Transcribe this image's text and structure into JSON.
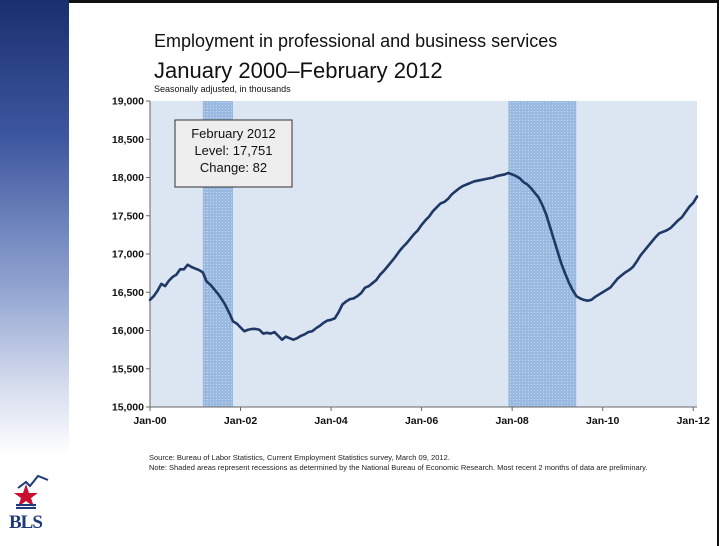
{
  "title": "Employment in professional and business services",
  "subtitle": "January 2000–February 2012",
  "units_note": "Seasonally adjusted, in thousands",
  "source": "Source: Bureau of Labor Statistics, Current Employment Statistics survey, March 09, 2012.",
  "note": "Note: Shaded areas represent recessions as determined by the National Bureau of Economic Research. Most recent 2 months of data are preliminary.",
  "logo_text": "BLS",
  "colors": {
    "line": "#1f3866",
    "plot_bg": "#dce6f2",
    "recession": "#9ab9e0",
    "side_band": "#2a4488"
  },
  "callout": {
    "lines": [
      "February 2012",
      "Level: 17,751",
      "Change: 82"
    ]
  },
  "chart_data": {
    "type": "line",
    "title": "Employment in professional and business services",
    "subtitle": "January 2000–February 2012",
    "ylabel": "Seasonally adjusted, in thousands",
    "x_ticks": [
      "Jan-00",
      "Jan-02",
      "Jan-04",
      "Jan-06",
      "Jan-08",
      "Jan-10",
      "Jan-12"
    ],
    "y_ticks": [
      "15,000",
      "15,500",
      "16,000",
      "16,500",
      "17,000",
      "17,500",
      "18,000",
      "18,500",
      "19,000"
    ],
    "ylim": [
      15000,
      19000
    ],
    "xlim": [
      "2000-01",
      "2012-02"
    ],
    "grid": false,
    "recessions": [
      {
        "start": "2001-03",
        "end": "2001-11"
      },
      {
        "start": "2007-12",
        "end": "2009-06"
      }
    ],
    "series": [
      {
        "points": [
          [
            "2000-01",
            16400
          ],
          [
            "2000-02",
            16450
          ],
          [
            "2000-03",
            16520
          ],
          [
            "2000-04",
            16610
          ],
          [
            "2000-05",
            16580
          ],
          [
            "2000-06",
            16650
          ],
          [
            "2000-07",
            16700
          ],
          [
            "2000-08",
            16730
          ],
          [
            "2000-09",
            16800
          ],
          [
            "2000-10",
            16800
          ],
          [
            "2000-11",
            16860
          ],
          [
            "2000-12",
            16830
          ],
          [
            "2001-01",
            16810
          ],
          [
            "2001-02",
            16790
          ],
          [
            "2001-03",
            16760
          ],
          [
            "2001-04",
            16640
          ],
          [
            "2001-05",
            16600
          ],
          [
            "2001-06",
            16540
          ],
          [
            "2001-07",
            16480
          ],
          [
            "2001-08",
            16410
          ],
          [
            "2001-09",
            16330
          ],
          [
            "2001-10",
            16230
          ],
          [
            "2001-11",
            16120
          ],
          [
            "2001-12",
            16090
          ],
          [
            "2002-01",
            16040
          ],
          [
            "2002-02",
            15990
          ],
          [
            "2002-03",
            16010
          ],
          [
            "2002-04",
            16020
          ],
          [
            "2002-05",
            16020
          ],
          [
            "2002-06",
            16010
          ],
          [
            "2002-07",
            15960
          ],
          [
            "2002-08",
            15970
          ],
          [
            "2002-09",
            15960
          ],
          [
            "2002-10",
            15980
          ],
          [
            "2002-11",
            15930
          ],
          [
            "2002-12",
            15880
          ],
          [
            "2003-01",
            15920
          ],
          [
            "2003-02",
            15900
          ],
          [
            "2003-03",
            15880
          ],
          [
            "2003-04",
            15900
          ],
          [
            "2003-05",
            15930
          ],
          [
            "2003-06",
            15950
          ],
          [
            "2003-07",
            15980
          ],
          [
            "2003-08",
            15990
          ],
          [
            "2003-09",
            16030
          ],
          [
            "2003-10",
            16060
          ],
          [
            "2003-11",
            16100
          ],
          [
            "2003-12",
            16130
          ],
          [
            "2004-01",
            16140
          ],
          [
            "2004-02",
            16160
          ],
          [
            "2004-03",
            16240
          ],
          [
            "2004-04",
            16340
          ],
          [
            "2004-05",
            16380
          ],
          [
            "2004-06",
            16410
          ],
          [
            "2004-07",
            16420
          ],
          [
            "2004-08",
            16450
          ],
          [
            "2004-09",
            16490
          ],
          [
            "2004-10",
            16560
          ],
          [
            "2004-11",
            16580
          ],
          [
            "2004-12",
            16620
          ],
          [
            "2005-01",
            16660
          ],
          [
            "2005-02",
            16730
          ],
          [
            "2005-03",
            16780
          ],
          [
            "2005-04",
            16840
          ],
          [
            "2005-05",
            16900
          ],
          [
            "2005-06",
            16960
          ],
          [
            "2005-07",
            17030
          ],
          [
            "2005-08",
            17090
          ],
          [
            "2005-09",
            17140
          ],
          [
            "2005-10",
            17200
          ],
          [
            "2005-11",
            17260
          ],
          [
            "2005-12",
            17310
          ],
          [
            "2006-01",
            17380
          ],
          [
            "2006-02",
            17440
          ],
          [
            "2006-03",
            17490
          ],
          [
            "2006-04",
            17560
          ],
          [
            "2006-05",
            17610
          ],
          [
            "2006-06",
            17660
          ],
          [
            "2006-07",
            17680
          ],
          [
            "2006-08",
            17720
          ],
          [
            "2006-09",
            17780
          ],
          [
            "2006-10",
            17820
          ],
          [
            "2006-11",
            17860
          ],
          [
            "2006-12",
            17890
          ],
          [
            "2007-01",
            17910
          ],
          [
            "2007-02",
            17930
          ],
          [
            "2007-03",
            17950
          ],
          [
            "2007-04",
            17960
          ],
          [
            "2007-05",
            17970
          ],
          [
            "2007-06",
            17980
          ],
          [
            "2007-07",
            17990
          ],
          [
            "2007-08",
            18000
          ],
          [
            "2007-09",
            18020
          ],
          [
            "2007-10",
            18030
          ],
          [
            "2007-11",
            18040
          ],
          [
            "2007-12",
            18060
          ],
          [
            "2008-01",
            18040
          ],
          [
            "2008-02",
            18020
          ],
          [
            "2008-03",
            17990
          ],
          [
            "2008-04",
            17940
          ],
          [
            "2008-05",
            17910
          ],
          [
            "2008-06",
            17860
          ],
          [
            "2008-07",
            17800
          ],
          [
            "2008-08",
            17740
          ],
          [
            "2008-09",
            17640
          ],
          [
            "2008-10",
            17520
          ],
          [
            "2008-11",
            17360
          ],
          [
            "2008-12",
            17200
          ],
          [
            "2009-01",
            17040
          ],
          [
            "2009-02",
            16880
          ],
          [
            "2009-03",
            16750
          ],
          [
            "2009-04",
            16630
          ],
          [
            "2009-05",
            16530
          ],
          [
            "2009-06",
            16450
          ],
          [
            "2009-07",
            16420
          ],
          [
            "2009-08",
            16400
          ],
          [
            "2009-09",
            16390
          ],
          [
            "2009-10",
            16400
          ],
          [
            "2009-11",
            16440
          ],
          [
            "2009-12",
            16470
          ],
          [
            "2010-01",
            16500
          ],
          [
            "2010-02",
            16530
          ],
          [
            "2010-03",
            16560
          ],
          [
            "2010-04",
            16620
          ],
          [
            "2010-05",
            16680
          ],
          [
            "2010-06",
            16720
          ],
          [
            "2010-07",
            16760
          ],
          [
            "2010-08",
            16790
          ],
          [
            "2010-09",
            16830
          ],
          [
            "2010-10",
            16900
          ],
          [
            "2010-11",
            16980
          ],
          [
            "2010-12",
            17040
          ],
          [
            "2011-01",
            17100
          ],
          [
            "2011-02",
            17160
          ],
          [
            "2011-03",
            17220
          ],
          [
            "2011-04",
            17270
          ],
          [
            "2011-05",
            17290
          ],
          [
            "2011-06",
            17310
          ],
          [
            "2011-07",
            17340
          ],
          [
            "2011-08",
            17390
          ],
          [
            "2011-09",
            17440
          ],
          [
            "2011-10",
            17480
          ],
          [
            "2011-11",
            17550
          ],
          [
            "2011-12",
            17620
          ],
          [
            "2012-01",
            17669
          ],
          [
            "2012-02",
            17751
          ]
        ]
      }
    ]
  }
}
